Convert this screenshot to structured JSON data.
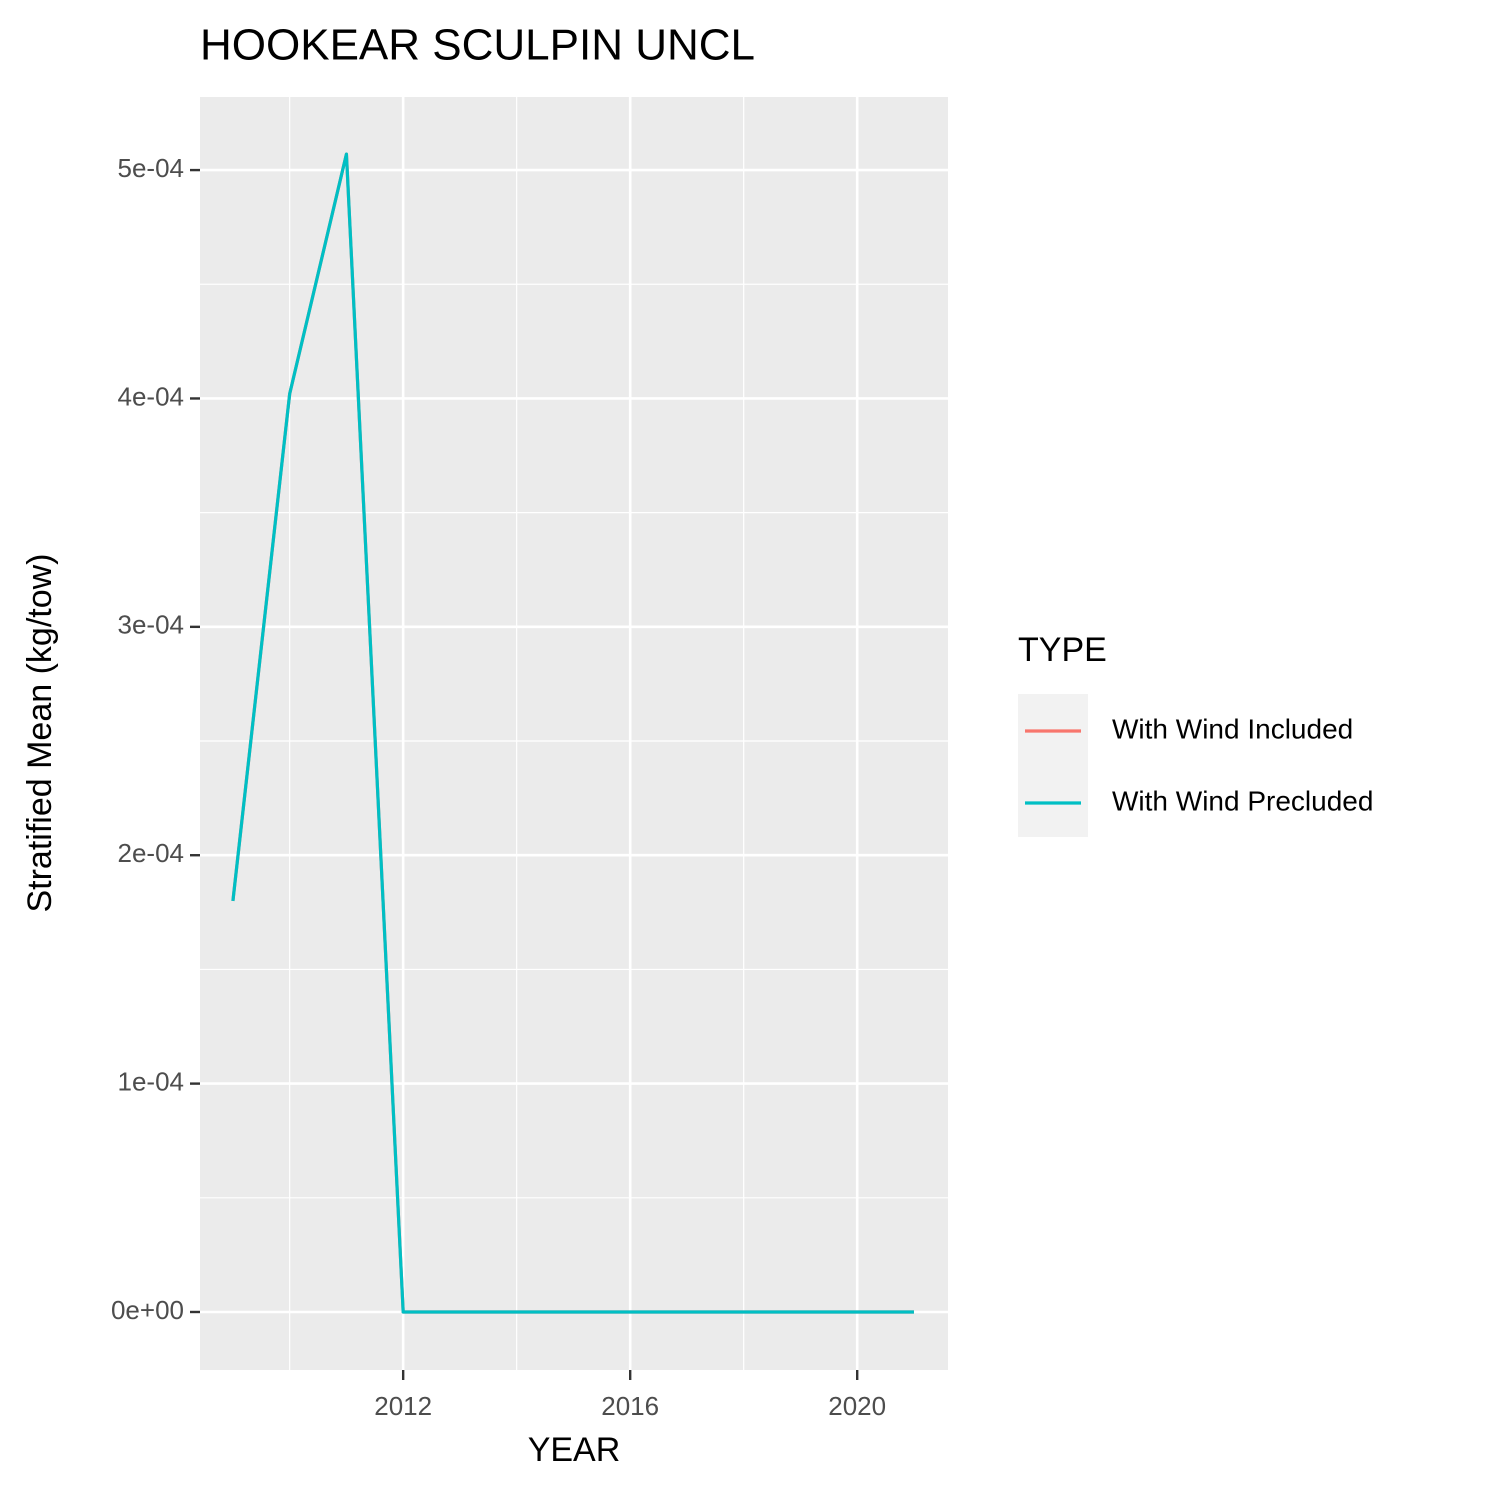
{
  "chart_data": {
    "type": "line",
    "title": "HOOKEAR SCULPIN UNCL",
    "x_label": "YEAR",
    "y_label": "Stratified Mean (kg/tow)",
    "x": [
      2009,
      2010,
      2011,
      2012,
      2013,
      2014,
      2015,
      2016,
      2017,
      2018,
      2019,
      2020,
      2021
    ],
    "series": [
      {
        "name": "With Wind Included",
        "color": "#F8766D",
        "values": [
          0.00018,
          0.000402,
          0.000507,
          0,
          0,
          0,
          0,
          0,
          0,
          0,
          0,
          0,
          0
        ]
      },
      {
        "name": "With Wind Precluded",
        "color": "#00BFC4",
        "values": [
          0.00018,
          0.000402,
          0.000507,
          0,
          0,
          0,
          0,
          0,
          0,
          0,
          0,
          0,
          0
        ]
      }
    ],
    "legend_title": "TYPE",
    "legend": "right",
    "xlim": [
      2008.42,
      2021.6
    ],
    "xticks": [
      2012,
      2016,
      2020
    ],
    "xminor": [
      2010,
      2014,
      2018
    ],
    "ylim": [
      -2.54e-05,
      0.000532
    ],
    "yticks": [
      {
        "value": 0,
        "label": "0e+00"
      },
      {
        "value": 0.0001,
        "label": "1e-04"
      },
      {
        "value": 0.0002,
        "label": "2e-04"
      },
      {
        "value": 0.0003,
        "label": "3e-04"
      },
      {
        "value": 0.0004,
        "label": "4e-04"
      },
      {
        "value": 0.0005,
        "label": "5e-04"
      }
    ],
    "yminor": [
      5e-05,
      0.00015,
      0.00025,
      0.00035,
      0.00045
    ],
    "grid": true
  }
}
